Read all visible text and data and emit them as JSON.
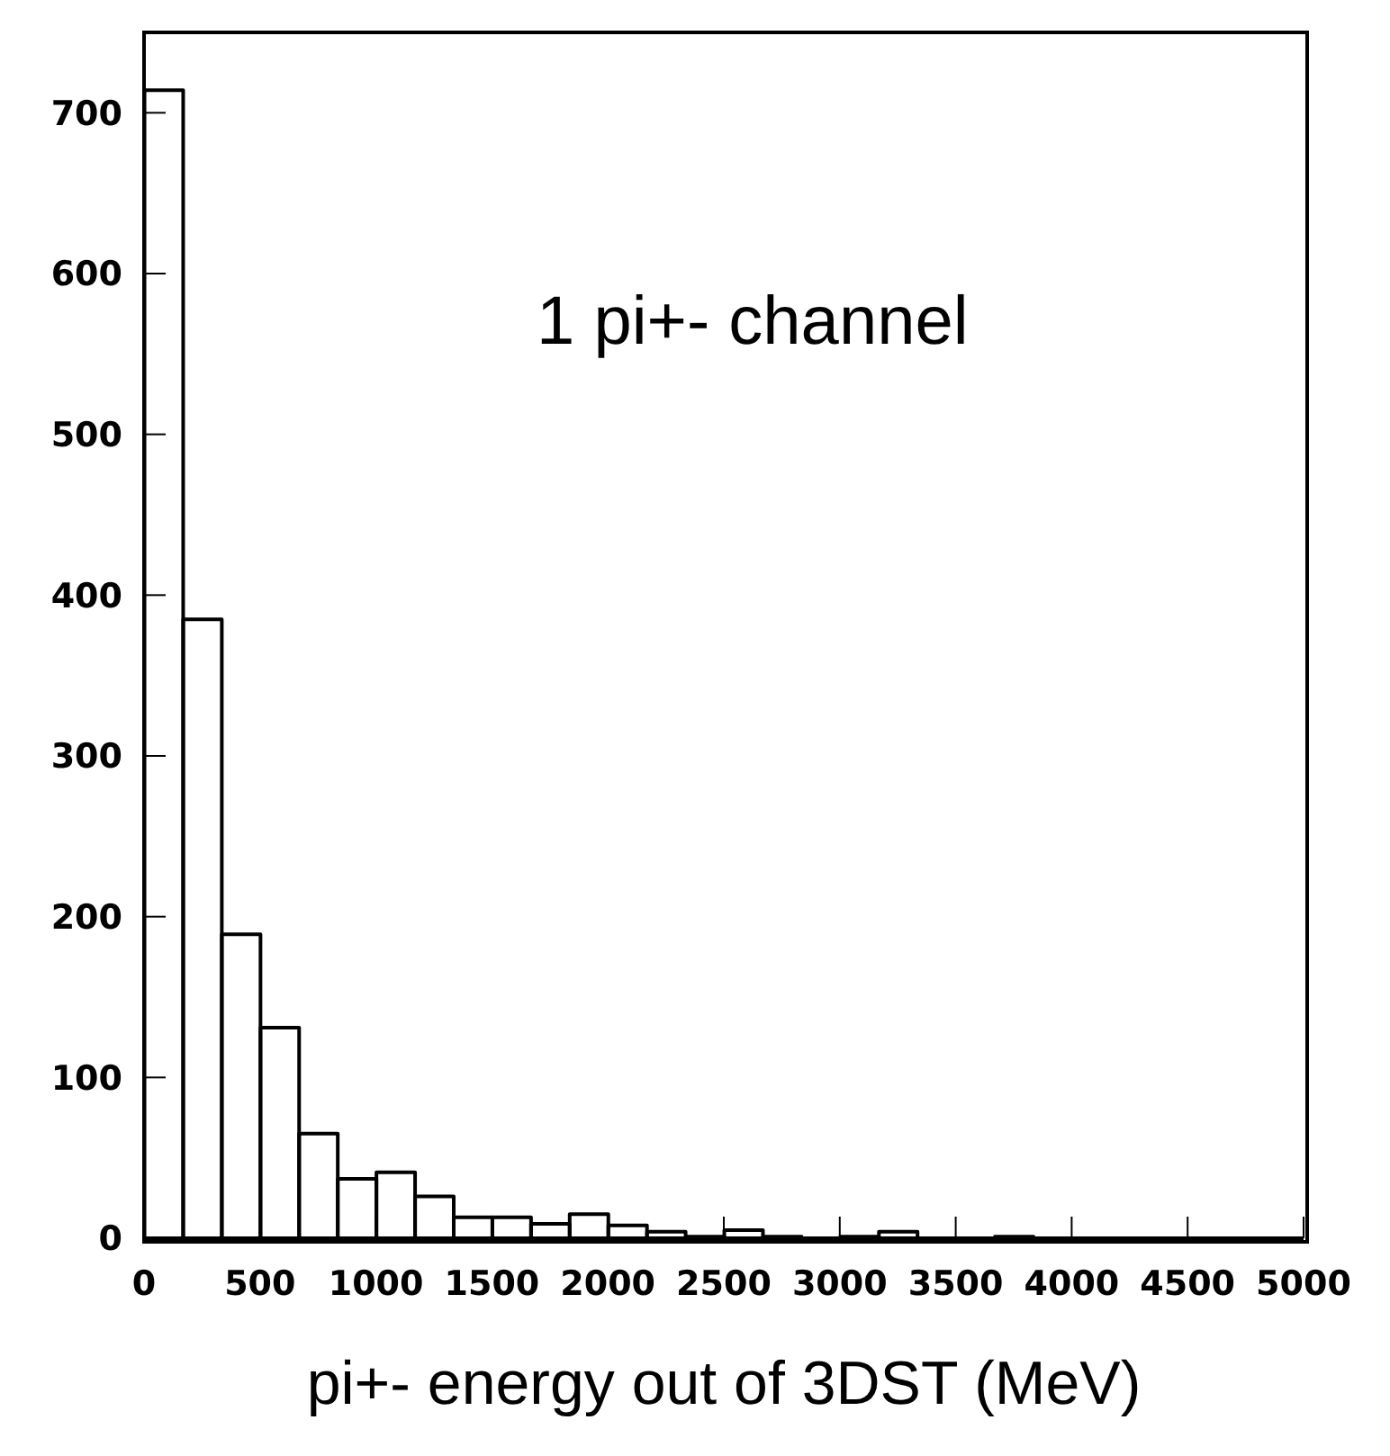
{
  "chart_data": {
    "type": "histogram",
    "xlabel": "pi+- energy out of 3DST (MeV)",
    "annotations": [
      "1 pi+- channel"
    ],
    "bins": [
      0,
      166.7,
      333.3,
      500,
      666.7,
      833.3,
      1000,
      1166.7,
      1333.3,
      1500,
      1666.7,
      1833.3,
      2000,
      2166.7,
      2333.3,
      2500,
      2666.7,
      2833.3,
      3000,
      3166.7,
      3333.3,
      3500,
      3666.7,
      3833.3,
      4000,
      4166.7,
      4333.3,
      4500,
      4666.7,
      4833.3,
      5000
    ],
    "values": [
      714,
      385,
      189,
      131,
      65,
      37,
      41,
      26,
      13,
      13,
      9,
      15,
      8,
      4,
      1,
      5,
      1,
      0,
      1,
      4,
      0,
      0,
      1,
      0,
      0,
      0,
      0,
      0,
      0,
      0
    ],
    "color": "#000000",
    "xlim": [
      0,
      5000
    ],
    "xticks": [
      0,
      500,
      1000,
      1500,
      2000,
      2500,
      3000,
      3500,
      4000,
      4500,
      5000
    ],
    "ylim": [
      0,
      750
    ],
    "yticks": [
      0,
      100,
      200,
      300,
      400,
      500,
      600,
      700
    ],
    "grid": false,
    "legend": false
  }
}
